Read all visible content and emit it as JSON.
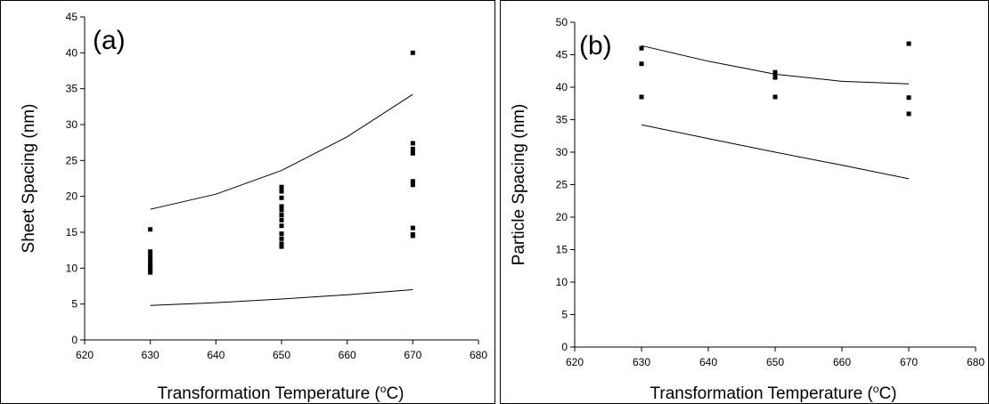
{
  "chart_data": [
    {
      "type": "scatter",
      "panel_label": "(a)",
      "xlabel": "Transformation Temperature (",
      "xlabel_sup": "o",
      "xlabel_tail": "C)",
      "ylabel": "Sheet Spacing (nm)",
      "xlim": [
        620,
        680
      ],
      "ylim": [
        0,
        45
      ],
      "xticks": [
        620,
        630,
        640,
        650,
        660,
        670,
        680
      ],
      "yticks": [
        0,
        5,
        10,
        15,
        20,
        25,
        30,
        35,
        40,
        45
      ],
      "grid": false,
      "series": [
        {
          "kind": "points",
          "x": [
            630,
            630,
            630,
            630,
            630,
            630,
            630,
            630,
            630,
            650,
            650,
            650,
            650,
            650,
            650,
            650,
            650,
            650,
            650,
            650,
            650,
            670,
            670,
            670,
            670,
            670,
            670,
            670,
            670,
            670
          ],
          "y": [
            15.4,
            12.3,
            11.7,
            11.2,
            10.8,
            10.4,
            10.0,
            9.7,
            9.4,
            21.3,
            20.7,
            19.8,
            18.6,
            18.1,
            17.4,
            16.7,
            15.9,
            14.8,
            14.1,
            13.4,
            13.0,
            40.0,
            27.4,
            26.6,
            26.0,
            22.1,
            21.6,
            15.6,
            14.7,
            14.5
          ]
        },
        {
          "kind": "line",
          "x": [
            630,
            640,
            650,
            660,
            670
          ],
          "y": [
            18.2,
            20.3,
            23.6,
            28.3,
            34.2
          ]
        },
        {
          "kind": "line",
          "x": [
            630,
            640,
            650,
            660,
            670
          ],
          "y": [
            4.8,
            5.2,
            5.7,
            6.3,
            7.0
          ]
        }
      ]
    },
    {
      "type": "scatter",
      "panel_label": "(b)",
      "xlabel": "Transformation Temperature (",
      "xlabel_sup": "o",
      "xlabel_tail": "C)",
      "ylabel": "Particle Spacing (nm)",
      "xlim": [
        620,
        680
      ],
      "ylim": [
        0,
        50
      ],
      "xticks": [
        620,
        630,
        640,
        650,
        660,
        670,
        680
      ],
      "yticks": [
        0,
        5,
        10,
        15,
        20,
        25,
        30,
        35,
        40,
        45,
        50
      ],
      "grid": false,
      "series": [
        {
          "kind": "points",
          "x": [
            630,
            630,
            630,
            650,
            650,
            650,
            650,
            670,
            670,
            670
          ],
          "y": [
            46.0,
            43.6,
            38.5,
            42.3,
            41.9,
            41.5,
            38.5,
            46.7,
            38.4,
            35.9
          ]
        },
        {
          "kind": "line",
          "x": [
            630,
            640,
            650,
            660,
            670
          ],
          "y": [
            46.4,
            44.0,
            42.0,
            40.9,
            40.5
          ]
        },
        {
          "kind": "line",
          "x": [
            630,
            640,
            650,
            660,
            670
          ],
          "y": [
            34.2,
            32.1,
            30.0,
            28.0,
            25.9
          ]
        }
      ]
    }
  ]
}
